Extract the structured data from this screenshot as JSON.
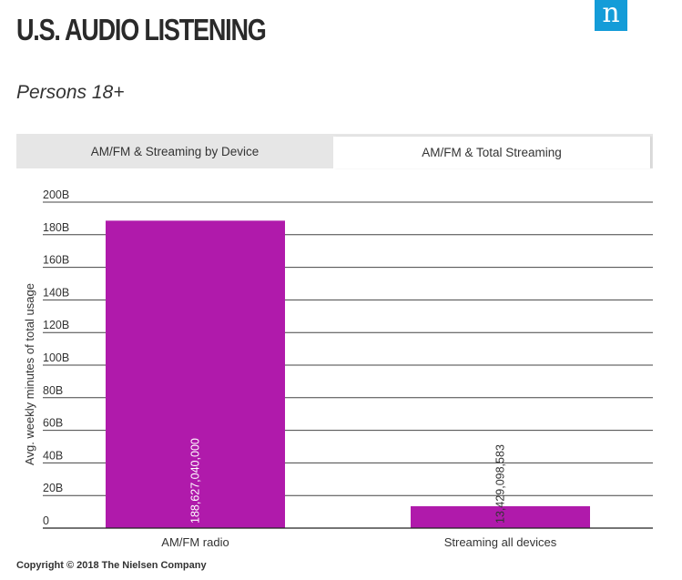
{
  "header": {
    "title": "U.S. AUDIO LISTENING",
    "logo_letter": "n",
    "subtitle": "Persons 18+"
  },
  "tabs": [
    {
      "label": "AM/FM & Streaming by Device",
      "active": false
    },
    {
      "label": "AM/FM & Total Streaming",
      "active": true
    }
  ],
  "colors": {
    "bar": "#b01aab",
    "logo_bg": "#149cd8",
    "grid": "#444444"
  },
  "chart_data": {
    "type": "bar",
    "title": "",
    "xlabel": "",
    "ylabel": "Avg. weekly minutes of total usage",
    "categories": [
      "AM/FM radio",
      "Streaming all devices"
    ],
    "values": [
      188627040000,
      13429098583
    ],
    "value_labels": [
      "188,627,040,000",
      "13,429,098,583"
    ],
    "ylim": [
      0,
      200000000000
    ],
    "yticks": [
      {
        "value": 0,
        "label": "0"
      },
      {
        "value": 20000000000,
        "label": "20B"
      },
      {
        "value": 40000000000,
        "label": "40B"
      },
      {
        "value": 60000000000,
        "label": "60B"
      },
      {
        "value": 80000000000,
        "label": "80B"
      },
      {
        "value": 100000000000,
        "label": "100B"
      },
      {
        "value": 120000000000,
        "label": "120B"
      },
      {
        "value": 140000000000,
        "label": "140B"
      },
      {
        "value": 160000000000,
        "label": "160B"
      },
      {
        "value": 180000000000,
        "label": "180B"
      },
      {
        "value": 200000000000,
        "label": "200B"
      }
    ],
    "grid": true,
    "legend": "none"
  },
  "footer": {
    "copyright": "Copyright © 2018 The Nielsen Company"
  }
}
